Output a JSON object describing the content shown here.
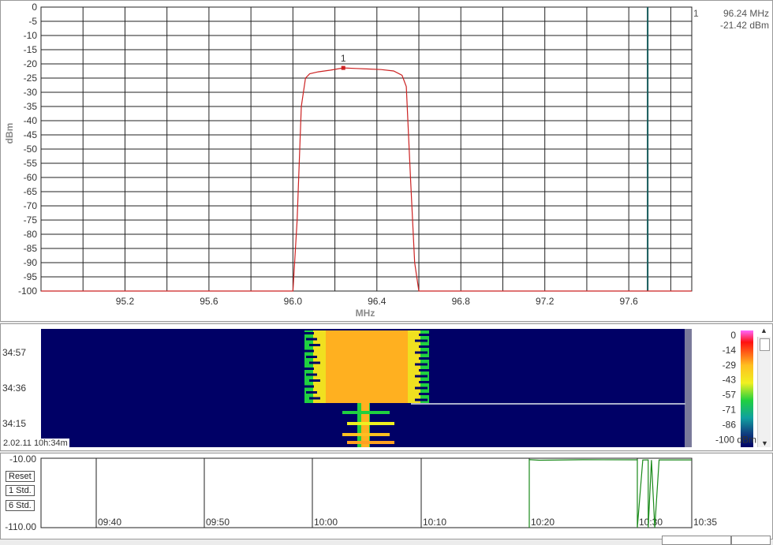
{
  "colors": {
    "trace": "#cc2222",
    "marker_line": "#145a5a",
    "grid": "#222222",
    "history_line": "#1a8a1a",
    "waterfall_bg": "#000066"
  },
  "spectrum": {
    "ylabel": "dBm",
    "xlabel": "MHz",
    "marker": {
      "index": "1",
      "freq_text": "96.24 MHz",
      "level_text": "-21.42 dBm"
    }
  },
  "waterfall": {
    "timestamp": "2.02.11 10h:34m",
    "time_labels": [
      "34:57",
      "34:36",
      "34:15"
    ],
    "colorbar_labels": [
      "0",
      "-14",
      "-29",
      "-43",
      "-57",
      "-71",
      "-86",
      "-100 dBm"
    ]
  },
  "history": {
    "buttons": {
      "reset": "Reset",
      "std1": "1 Std.",
      "std6": "6 Std."
    },
    "ymax_label": "-10.00",
    "ymin_label": "-110.00",
    "time_labels": [
      "09:40",
      "09:50",
      "10:00",
      "10:10",
      "10:20",
      "10:30",
      "10:35"
    ]
  },
  "chart_data": [
    {
      "type": "line",
      "xlabel": "MHz",
      "ylabel": "dBm",
      "xlim": [
        94.8,
        97.9
      ],
      "ylim": [
        -100,
        0
      ],
      "x_ticks": [
        95.2,
        95.6,
        96.0,
        96.4,
        96.8,
        97.2,
        97.6
      ],
      "y_ticks": [
        0,
        -5,
        -10,
        -15,
        -20,
        -25,
        -30,
        -35,
        -40,
        -45,
        -50,
        -55,
        -60,
        -65,
        -70,
        -75,
        -80,
        -85,
        -90,
        -95,
        -100
      ],
      "grid": true,
      "series": [
        {
          "x": [
            94.8,
            96.0,
            96.02,
            96.04,
            96.06,
            96.08,
            96.12,
            96.18,
            96.24,
            96.3,
            96.36,
            96.42,
            96.48,
            96.52,
            96.54,
            96.56,
            96.58,
            96.6,
            97.9
          ],
          "y": [
            -100,
            -100,
            -75,
            -35,
            -25,
            -23.5,
            -22.8,
            -22.2,
            -21.42,
            -21.6,
            -21.8,
            -22,
            -22.5,
            -24,
            -28,
            -60,
            -90,
            -100,
            -100
          ]
        }
      ],
      "marker": {
        "x": 96.24,
        "y": -21.42,
        "label": "1"
      },
      "vertical_line_x": 97.69
    },
    {
      "type": "line",
      "xlabel": "",
      "ylabel": "",
      "ylim": [
        -110,
        -10
      ],
      "x_ticks": [
        "09:40",
        "09:50",
        "10:00",
        "10:10",
        "10:20",
        "10:30",
        "10:35"
      ],
      "series": [
        {
          "x": [
            "10:20",
            "10:20",
            "10:21",
            "10:25",
            "10:30",
            "10:30",
            "10:30.5",
            "10:31",
            "10:31",
            "10:31.3",
            "10:31.6",
            "10:32",
            "10:35"
          ],
          "y": [
            -110,
            -12,
            -12.8,
            -12.2,
            -12.3,
            -110,
            -12.5,
            -12.4,
            -110,
            -12.6,
            -110,
            -12.4,
            -12.4
          ]
        }
      ]
    }
  ]
}
